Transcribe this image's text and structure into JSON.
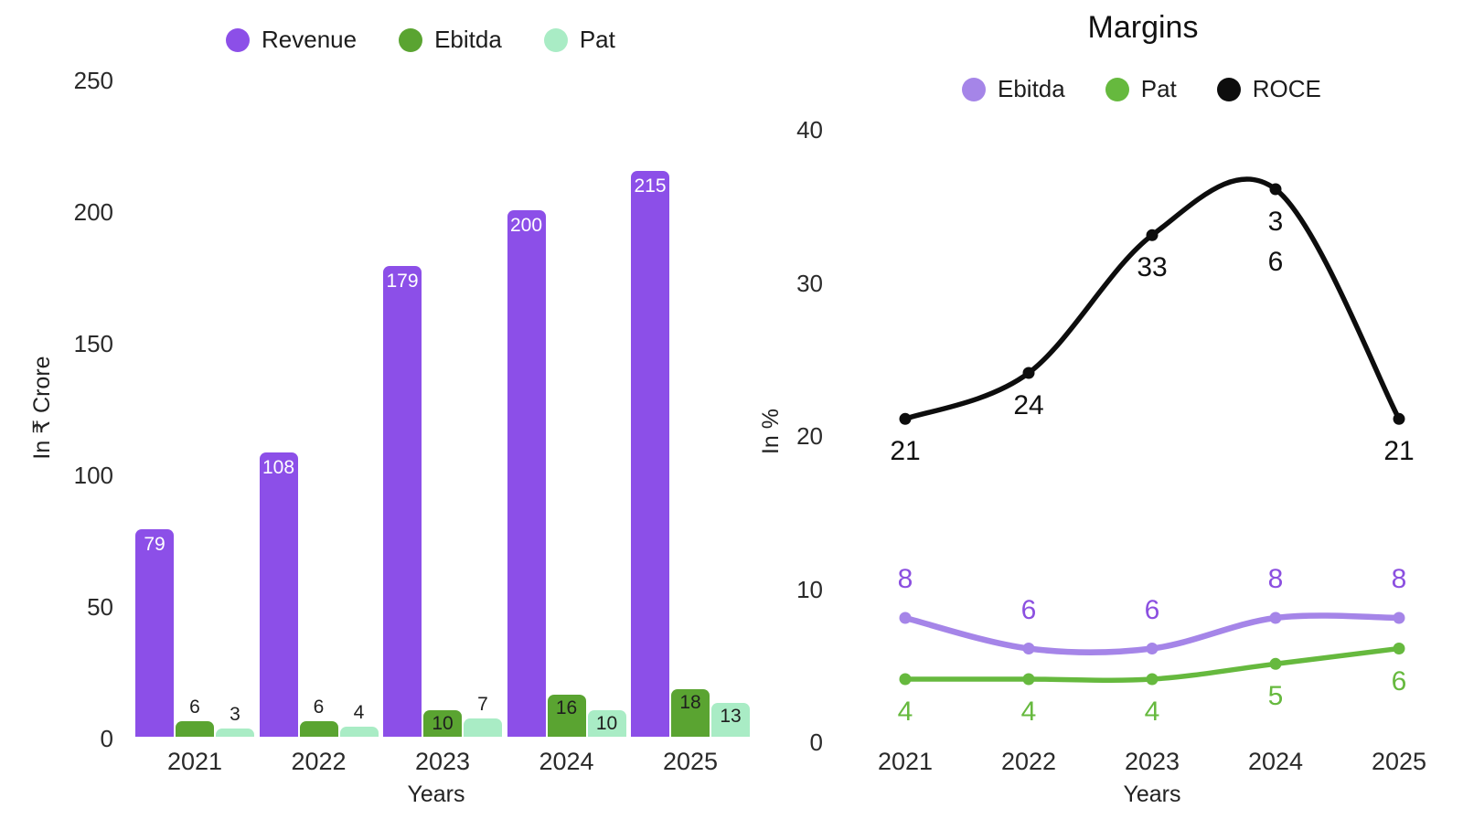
{
  "chart_data": [
    {
      "type": "bar",
      "categories": [
        "2021",
        "2022",
        "2023",
        "2024",
        "2025"
      ],
      "series": [
        {
          "name": "Revenue",
          "values": [
            79,
            108,
            179,
            200,
            215
          ],
          "color": "#8c4fe8",
          "label_color": "#ffffff",
          "label_placement": "inside"
        },
        {
          "name": "Ebitda",
          "values": [
            6,
            6,
            10,
            16,
            18
          ],
          "color": "#5aa431",
          "label_color": "#1f1f1f",
          "label_placement": "auto"
        },
        {
          "name": "Pat",
          "values": [
            3,
            4,
            7,
            10,
            13
          ],
          "color": "#a9ecc5",
          "label_color": "#1f1f1f",
          "label_placement": "auto"
        }
      ],
      "title": "",
      "xlabel": "Years",
      "ylabel": "In ₹ Crore",
      "ylim": [
        0,
        250
      ],
      "yticks": [
        0,
        50,
        100,
        150,
        200,
        250
      ],
      "legend_position": "top",
      "grid": false
    },
    {
      "type": "line",
      "categories": [
        "2021",
        "2022",
        "2023",
        "2024",
        "2025"
      ],
      "series": [
        {
          "name": "Ebitda",
          "values": [
            8,
            6,
            6,
            8,
            8
          ],
          "labels": [
            "8",
            "6",
            "6",
            "8",
            "8"
          ],
          "color": "#a585e8",
          "label_color": "#8b4fe0",
          "label_side": "above"
        },
        {
          "name": "Pat",
          "values": [
            4,
            4,
            4,
            5,
            6
          ],
          "labels": [
            "4",
            "4",
            "4",
            "5",
            "6"
          ],
          "color": "#66b93e",
          "label_color": "#66b93e",
          "label_side": "below"
        },
        {
          "name": "ROCE",
          "values": [
            21,
            24,
            33,
            36,
            21
          ],
          "labels": [
            "21",
            "24",
            "33",
            "3|6",
            "21"
          ],
          "color": "#0d0d0d",
          "label_color": "#111111",
          "label_side": "below"
        }
      ],
      "title": "Margins",
      "xlabel": "Years",
      "ylabel": "In %",
      "ylim": [
        0,
        40
      ],
      "yticks": [
        0,
        10,
        20,
        30,
        40
      ],
      "legend_position": "top",
      "grid": false
    }
  ]
}
